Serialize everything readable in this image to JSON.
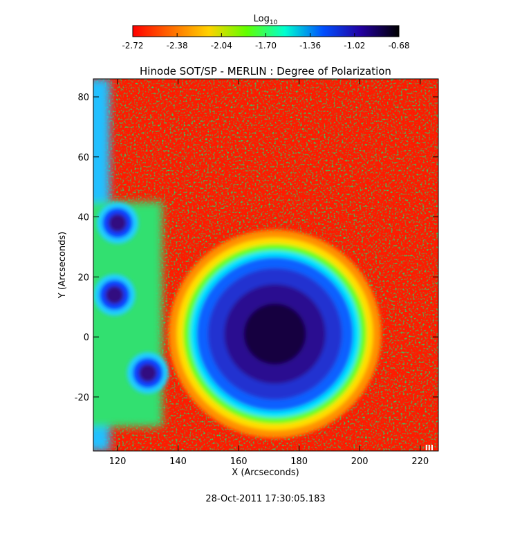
{
  "chart_data": {
    "type": "heatmap",
    "title": "Hinode SOT/SP - MERLIN : Degree of Polarization",
    "xlabel": "X (Arcseconds)",
    "ylabel": "Y (Arcseconds)",
    "xlim": [
      112,
      226
    ],
    "ylim": [
      -38,
      86
    ],
    "x_ticks": [
      120,
      140,
      160,
      180,
      200,
      220
    ],
    "y_ticks": [
      -20,
      0,
      20,
      40,
      60,
      80
    ],
    "colorbar": {
      "label": "Log",
      "label_sub": "10",
      "range": [
        -2.72,
        -0.68
      ],
      "ticks": [
        "-2.72",
        "-2.38",
        "-2.04",
        "-1.70",
        "-1.36",
        "-1.02",
        "-0.68"
      ],
      "colors": [
        "#ff0000",
        "#ff6a00",
        "#ffd200",
        "#60ff00",
        "#00ffd0",
        "#0050ff",
        "#2200a0",
        "#000000"
      ]
    },
    "features": {
      "umbra_center": [
        172,
        1
      ],
      "penumbra_radius": 27,
      "pores": [
        [
          120,
          38
        ],
        [
          119,
          14
        ],
        [
          130,
          -12
        ]
      ]
    },
    "corner_mark": "III"
  },
  "timestamp": "28-Oct-2011 17:30:05.183"
}
